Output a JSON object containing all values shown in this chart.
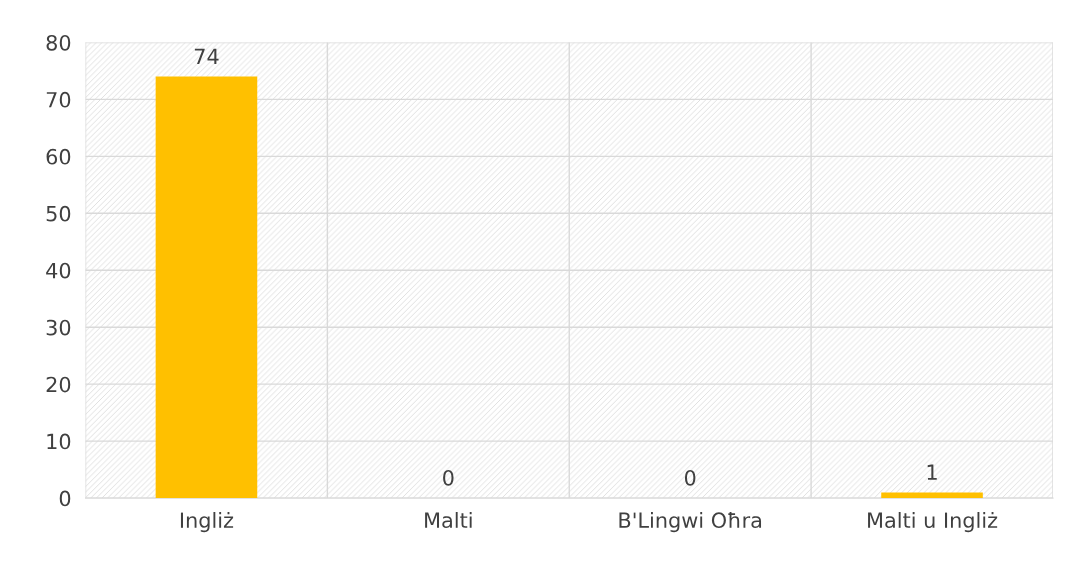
{
  "chart_data": {
    "type": "bar",
    "categories": [
      "Ingliż",
      "Malti",
      "B'Lingwi Oħra",
      "Malti u Ingliż"
    ],
    "values": [
      74,
      0,
      0,
      1
    ],
    "color": "#ffc000",
    "ylim": [
      0,
      80
    ],
    "yticks": [
      0,
      10,
      20,
      30,
      40,
      50,
      60,
      70,
      80
    ],
    "grid": true,
    "data_labels": true
  }
}
